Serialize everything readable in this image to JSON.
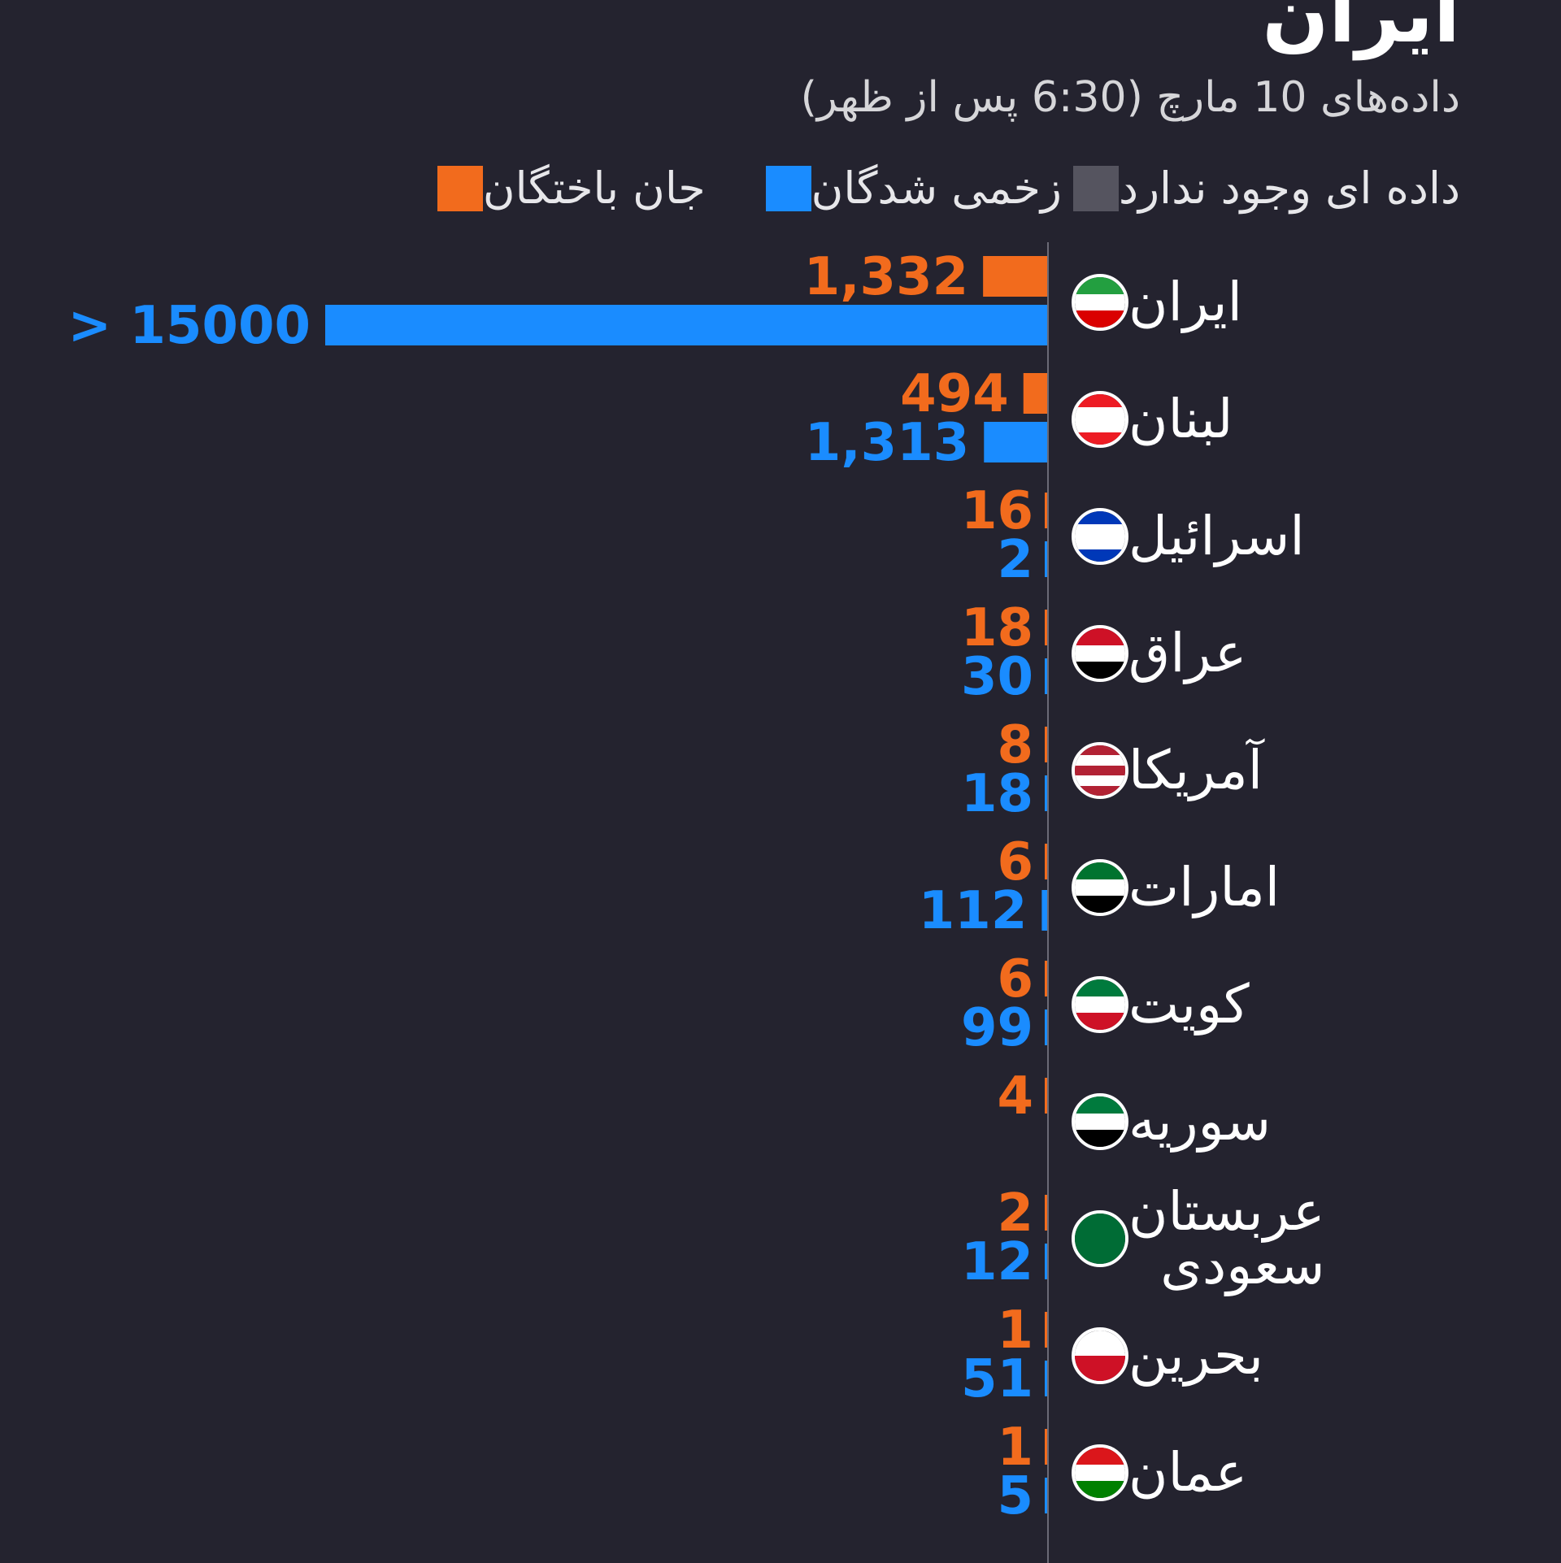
{
  "header": {
    "title": "ایران",
    "subtitle": "داده‌های 10 مارچ (6:30 پس از ظهر)"
  },
  "legend": [
    {
      "label": "جان باختگان",
      "color": "#f26b1d"
    },
    {
      "label": "زخمی شدگان",
      "color": "#1a8cff"
    },
    {
      "label": "داده ای وجود ندارد",
      "color": "#55545f"
    }
  ],
  "chart_data": {
    "type": "bar",
    "orientation": "horizontal",
    "categories": [
      "ایران",
      "لبنان",
      "اسرائیل",
      "عراق",
      "آمریکا",
      "امارات",
      "کویت",
      "سوریه",
      "عربستان\nسعودی",
      "بحرین",
      "عمان"
    ],
    "series": [
      {
        "name": "جان باختگان",
        "color": "#f26b1d",
        "values": [
          1332,
          494,
          16,
          18,
          8,
          6,
          6,
          4,
          2,
          1,
          1
        ],
        "labels": [
          "1,332",
          "494",
          "16",
          "18",
          "8",
          "6",
          "6",
          "4",
          "2",
          "1",
          "1"
        ]
      },
      {
        "name": "زخمی شدگان",
        "color": "#1a8cff",
        "values": [
          15000,
          1313,
          2,
          30,
          18,
          112,
          99,
          null,
          12,
          51,
          5
        ],
        "labels": [
          "> 15000",
          "1,313",
          "2",
          "30",
          "18",
          "112",
          "99",
          null,
          "12",
          "51",
          "5"
        ]
      }
    ]
  },
  "flags": [
    {
      "icon": "iran-flag-icon",
      "stripes": [
        "#239f40",
        "#ffffff",
        "#da0000"
      ]
    },
    {
      "icon": "lebanon-flag-icon",
      "stripes": [
        "#ed1c24",
        "#ffffff",
        "#ffffff",
        "#ed1c24"
      ]
    },
    {
      "icon": "israel-flag-icon",
      "stripes": [
        "#0038b8",
        "#ffffff",
        "#ffffff",
        "#0038b8"
      ]
    },
    {
      "icon": "iraq-flag-icon",
      "stripes": [
        "#ce1126",
        "#ffffff",
        "#000000"
      ]
    },
    {
      "icon": "usa-flag-icon",
      "stripes": [
        "#b22234",
        "#ffffff",
        "#b22234",
        "#ffffff",
        "#b22234"
      ]
    },
    {
      "icon": "uae-flag-icon",
      "stripes": [
        "#00732f",
        "#ffffff",
        "#000000"
      ]
    },
    {
      "icon": "kuwait-flag-icon",
      "stripes": [
        "#007a3d",
        "#ffffff",
        "#ce1126"
      ]
    },
    {
      "icon": "syria-flag-icon",
      "stripes": [
        "#007a3d",
        "#ffffff",
        "#000000"
      ]
    },
    {
      "icon": "saudi-flag-icon",
      "stripes": [
        "#006c35",
        "#006c35"
      ]
    },
    {
      "icon": "bahrain-flag-icon",
      "stripes": [
        "#ffffff",
        "#ce1126"
      ]
    },
    {
      "icon": "oman-flag-icon",
      "stripes": [
        "#db161b",
        "#ffffff",
        "#008000"
      ]
    }
  ],
  "missing_color": "#55545f"
}
